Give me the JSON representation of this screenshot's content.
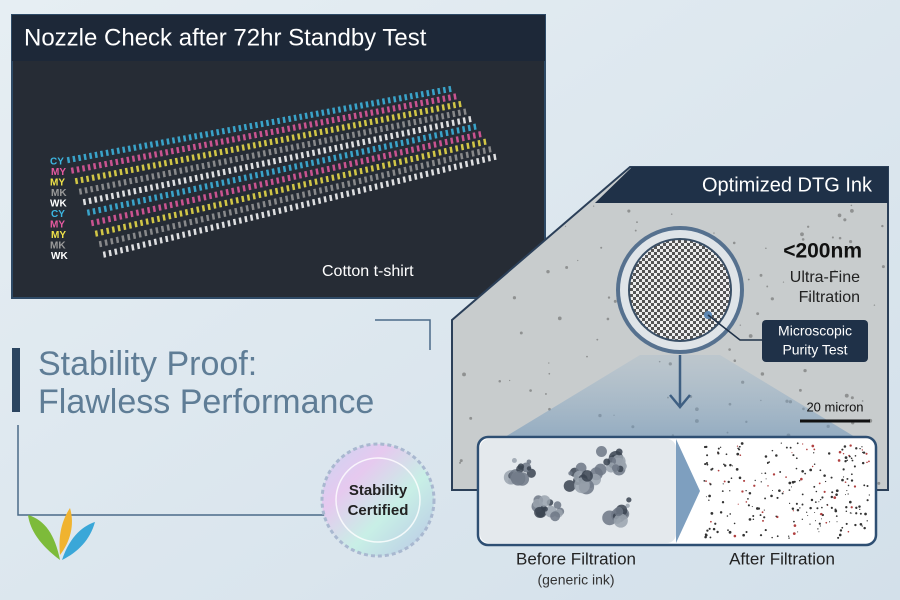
{
  "nozzle_panel": {
    "title": "Nozzle Check after 72hr Standby Test",
    "channel_labels": [
      "CY",
      "MY",
      "MY",
      "MK",
      "WK",
      "CY",
      "MY",
      "MY",
      "MK",
      "WK"
    ],
    "substrate": "Cotton t-shirt"
  },
  "headline": [
    "Stability Proof:",
    "Flawless Performance"
  ],
  "badge": [
    "Stability",
    "Certified"
  ],
  "ink_panel": {
    "title": "Optimized DTG Ink",
    "filtration": [
      "<200nm",
      "Ultra-Fine",
      "Filtration"
    ],
    "callout": [
      "Microscopic",
      "Purity Test"
    ],
    "scale_bar": "20 micron",
    "comparison": {
      "before": "Before Filtration",
      "before_note": "(generic ink)",
      "after": "After Filtration"
    }
  }
}
